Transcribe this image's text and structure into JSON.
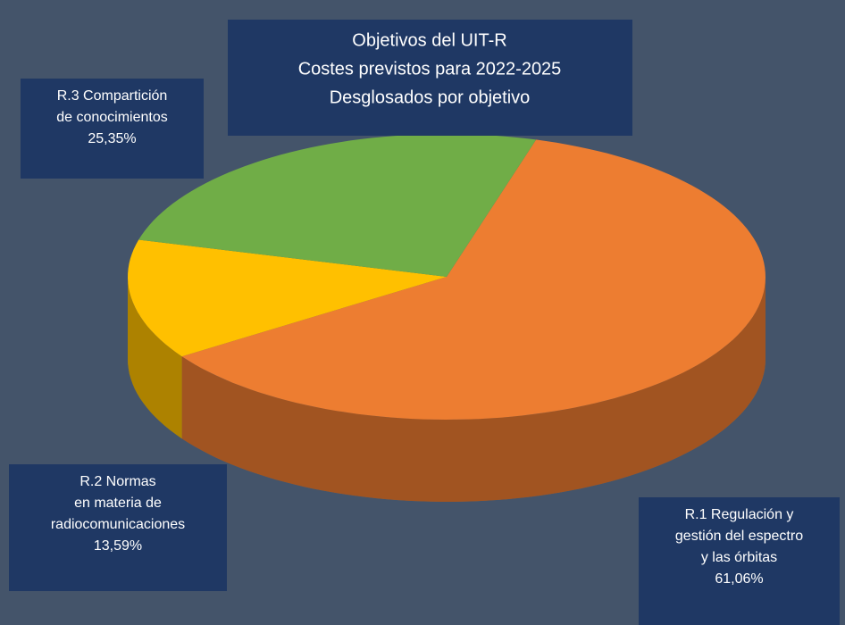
{
  "chart_data": {
    "type": "pie",
    "title": [
      "Objetivos del UIT-R",
      "Costes previstos para 2022-2025",
      "Desglosados por objetivo"
    ],
    "categories": [
      [
        "R.1 Regulación y",
        "gestión del espectro",
        "y las órbitas"
      ],
      [
        "R.2 Normas",
        "en materia de",
        "radiocomunicaciones"
      ],
      [
        "R.3 Compartición",
        "de conocimientos"
      ]
    ],
    "values": [
      61.06,
      13.59,
      25.35
    ],
    "value_labels": [
      "61,06%",
      "13,59%",
      "25,35%"
    ],
    "colors": [
      "#ed7d31",
      "#ffc000",
      "#70ad47"
    ]
  }
}
